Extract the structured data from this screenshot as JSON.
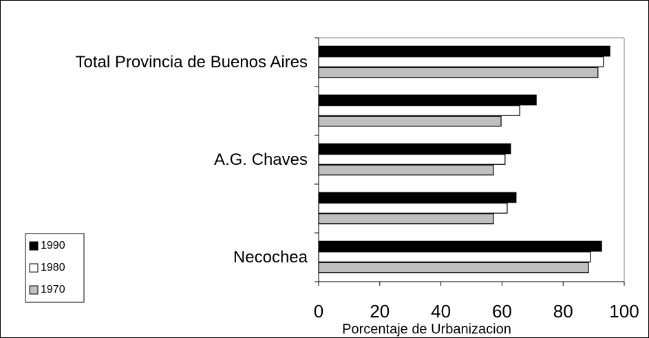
{
  "chart_data": {
    "type": "hbar",
    "categories": [
      "Total Provincia de Buenos Aires",
      null,
      "A.G. Chaves",
      null,
      "Necochea"
    ],
    "series": [
      {
        "name": "1990",
        "color": "#000000",
        "values": [
          95.3,
          71.2,
          62.8,
          64.6,
          92.6
        ]
      },
      {
        "name": "1980",
        "color": "#ffffff",
        "values": [
          93.2,
          65.8,
          61,
          61.7,
          89
        ]
      },
      {
        "name": "1970",
        "color": "#c0c0c0",
        "values": [
          91.4,
          59.7,
          57.2,
          57.2,
          88.3
        ]
      }
    ],
    "x_label": "Porcentaje de Urbanizacion",
    "xlim": [
      0,
      100
    ],
    "xticks": [
      0,
      20,
      40,
      60,
      80,
      100
    ],
    "legend": "bottom-left"
  }
}
